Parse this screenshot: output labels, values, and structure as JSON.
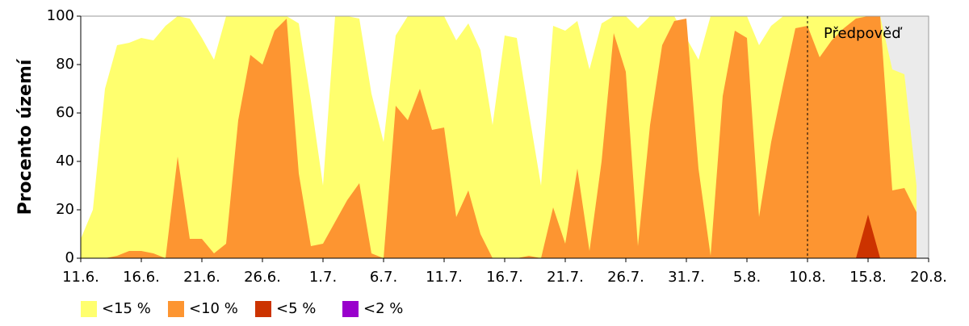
{
  "chart_data": {
    "type": "area",
    "y_label": "Procento území",
    "categories": [
      "11.6.",
      null,
      null,
      null,
      null,
      "16.6.",
      null,
      null,
      null,
      null,
      "21.6.",
      null,
      null,
      null,
      null,
      "26.6.",
      null,
      null,
      null,
      null,
      "1.7.",
      null,
      null,
      null,
      null,
      "6.7.",
      null,
      null,
      null,
      null,
      "11.7.",
      null,
      null,
      null,
      null,
      "16.7.",
      null,
      null,
      null,
      null,
      "21.7.",
      null,
      null,
      null,
      null,
      "26.7.",
      null,
      null,
      null,
      null,
      "31.7.",
      null,
      null,
      null,
      null,
      "5.8.",
      null,
      null,
      null,
      null,
      "10.8.",
      null,
      null,
      null,
      null,
      "15.8.",
      null,
      null,
      null,
      null,
      "20.8."
    ],
    "ylim": [
      0,
      100
    ],
    "yticks": [
      0,
      20,
      40,
      60,
      80,
      100
    ],
    "annotations": [
      {
        "text": "Předpověď",
        "x": "10.8."
      }
    ],
    "series": [
      {
        "name": "<15 %",
        "color": "#ffff6e",
        "values": [
          8,
          20,
          70,
          88,
          89,
          91,
          90,
          96,
          100,
          99,
          91,
          82,
          100,
          100,
          100,
          100,
          100,
          100,
          97,
          65,
          30,
          100,
          100,
          99,
          68,
          48,
          92,
          100,
          100,
          100,
          100,
          90,
          97,
          86,
          55,
          92,
          91,
          60,
          30,
          96,
          94,
          98,
          78,
          97,
          100,
          100,
          95,
          100,
          100,
          100,
          91,
          82,
          100,
          100,
          100,
          100,
          88,
          96,
          100,
          100,
          100,
          100,
          100,
          100,
          100,
          100,
          100,
          78,
          76,
          30,
          null
        ]
      },
      {
        "name": "<10 %",
        "color": "#fd9531",
        "values": [
          0,
          0,
          0,
          1,
          3,
          3,
          2,
          0,
          42,
          8,
          8,
          2,
          6,
          57,
          84,
          80,
          94,
          99,
          35,
          5,
          6,
          15,
          24,
          31,
          2,
          0,
          63,
          57,
          70,
          53,
          54,
          17,
          28,
          10,
          0,
          0,
          0,
          1,
          0,
          21,
          6,
          37,
          3,
          40,
          93,
          77,
          5,
          55,
          88,
          98,
          99,
          37,
          1,
          67,
          94,
          91,
          17,
          48,
          72,
          95,
          96,
          83,
          90,
          95,
          99,
          100,
          100,
          28,
          29,
          19,
          null
        ]
      },
      {
        "name": "<5 %",
        "color": "#cc3300",
        "values": [
          0,
          0,
          0,
          0,
          0,
          0,
          0,
          0,
          0,
          0,
          0,
          0,
          0,
          0,
          0,
          0,
          0,
          0,
          0,
          0,
          0,
          0,
          0,
          0,
          0,
          0,
          0,
          0,
          0,
          0,
          0,
          0,
          0,
          0,
          0,
          0,
          0,
          0,
          0,
          0,
          0,
          0,
          0,
          0,
          0,
          0,
          0,
          0,
          0,
          0,
          0,
          0,
          0,
          0,
          0,
          0,
          0,
          0,
          0,
          0,
          0,
          0,
          0,
          0,
          0,
          18,
          0,
          0,
          0,
          0,
          null
        ]
      },
      {
        "name": "<2 %",
        "color": "#9900cc",
        "values": [
          0,
          0,
          0,
          0,
          0,
          0,
          0,
          0,
          0,
          0,
          0,
          0,
          0,
          0,
          0,
          0,
          0,
          0,
          0,
          0,
          0,
          0,
          0,
          0,
          0,
          0,
          0,
          0,
          0,
          0,
          0,
          0,
          0,
          0,
          0,
          0,
          0,
          0,
          0,
          0,
          0,
          0,
          0,
          0,
          0,
          0,
          0,
          0,
          0,
          0,
          0,
          0,
          0,
          0,
          0,
          0,
          0,
          0,
          0,
          0,
          0,
          0,
          0,
          0,
          0,
          0,
          0,
          0,
          0,
          0,
          null
        ]
      }
    ]
  }
}
